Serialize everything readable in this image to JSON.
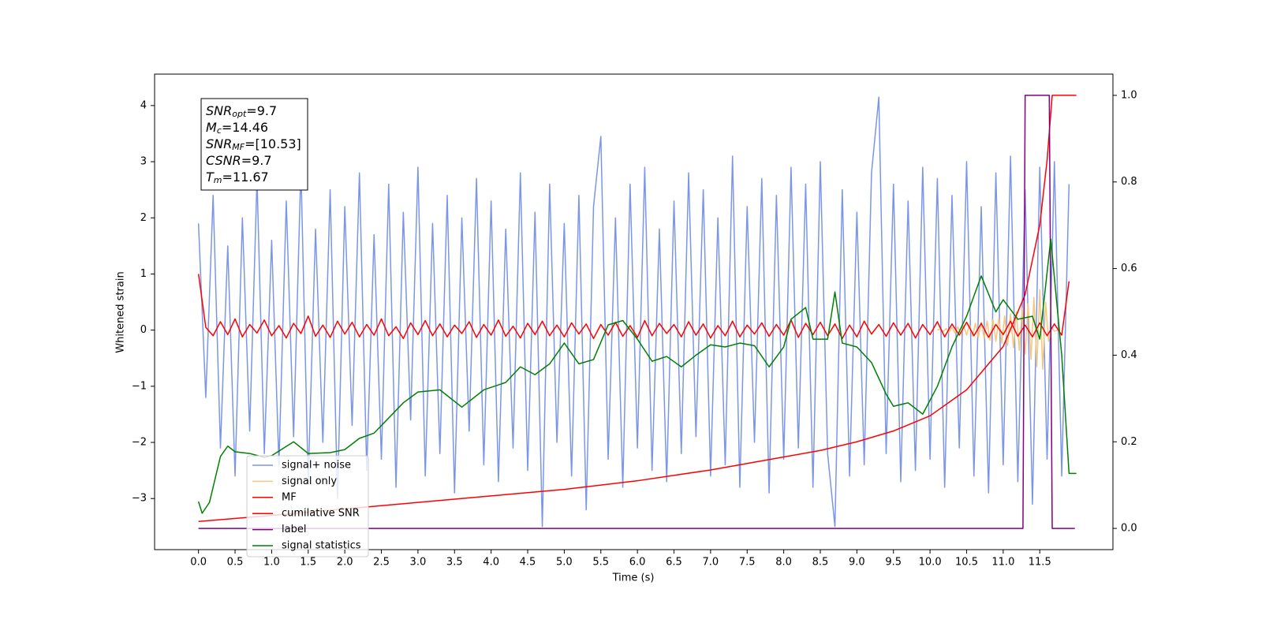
{
  "chart_data": {
    "type": "line",
    "xlabel": "Time (s)",
    "ylabel": "Whitened strain",
    "xlim": [
      -0.6,
      12.5
    ],
    "ylim": [
      -3.91,
      4.56
    ],
    "y2lim": [
      -0.049,
      1.049
    ],
    "xticks": [
      {
        "value": 0,
        "label": "0.0"
      },
      {
        "value": 0.5,
        "label": "0.5"
      },
      {
        "value": 1,
        "label": "1.0"
      },
      {
        "value": 1.5,
        "label": "1.5"
      },
      {
        "value": 2,
        "label": "2.0"
      },
      {
        "value": 2.5,
        "label": "2.5"
      },
      {
        "value": 3,
        "label": "3.0"
      },
      {
        "value": 3.5,
        "label": "3.5"
      },
      {
        "value": 4,
        "label": "4.0"
      },
      {
        "value": 4.5,
        "label": "4.5"
      },
      {
        "value": 5,
        "label": "5.0"
      },
      {
        "value": 5.5,
        "label": "5.5"
      },
      {
        "value": 6,
        "label": "6.0"
      },
      {
        "value": 6.5,
        "label": "6.5"
      },
      {
        "value": 7,
        "label": "7.0"
      },
      {
        "value": 7.5,
        "label": "7.5"
      },
      {
        "value": 8,
        "label": "8.0"
      },
      {
        "value": 8.5,
        "label": "8.5"
      },
      {
        "value": 9,
        "label": "9.0"
      },
      {
        "value": 9.5,
        "label": "9.5"
      },
      {
        "value": 10,
        "label": "10.0"
      },
      {
        "value": 10.5,
        "label": "10.5"
      },
      {
        "value": 11,
        "label": "11.0"
      },
      {
        "value": 11.5,
        "label": "11.5"
      }
    ],
    "yticks": [
      {
        "value": -3,
        "label": "−3"
      },
      {
        "value": -2,
        "label": "−2"
      },
      {
        "value": -1,
        "label": "−1"
      },
      0,
      1,
      2,
      3,
      4
    ],
    "y2ticks": [
      {
        "value": 0,
        "label": "0.0"
      },
      {
        "value": 0.2,
        "label": "0.2"
      },
      {
        "value": 0.4,
        "label": "0.4"
      },
      {
        "value": 0.6,
        "label": "0.6"
      },
      {
        "value": 0.8,
        "label": "0.8"
      },
      {
        "value": 1,
        "label": "1.0"
      }
    ],
    "legend": "lower left",
    "annotation": [
      {
        "text": "SNR",
        "sub": "opt",
        "rest": "=9.7"
      },
      {
        "text": "M",
        "sub": "c",
        "rest": "=14.46"
      },
      {
        "text": "SNR",
        "sub": "MF",
        "rest": "=[10.53]"
      },
      {
        "text": "CSNR",
        "rest": "=9.7"
      },
      {
        "text": "T",
        "sub": "m",
        "rest": "=11.67"
      }
    ],
    "series": [
      {
        "name": "signal+ noise",
        "color": "#7b96e8",
        "x": [
          0,
          0.1,
          0.2,
          0.3,
          0.4,
          0.5,
          0.6,
          0.7,
          0.8,
          0.9,
          1,
          1.1,
          1.2,
          1.3,
          1.4,
          1.5,
          1.6,
          1.7,
          1.8,
          1.9,
          2,
          2.1,
          2.2,
          2.3,
          2.4,
          2.5,
          2.6,
          2.7,
          2.8,
          2.9,
          3,
          3.1,
          3.2,
          3.3,
          3.4,
          3.5,
          3.6,
          3.7,
          3.8,
          3.9,
          4,
          4.1,
          4.2,
          4.3,
          4.4,
          4.5,
          4.6,
          4.7,
          4.8,
          4.9,
          5,
          5.1,
          5.2,
          5.3,
          5.4,
          5.5,
          5.6,
          5.7,
          5.8,
          5.9,
          6,
          6.1,
          6.2,
          6.3,
          6.4,
          6.5,
          6.6,
          6.7,
          6.8,
          6.9,
          7,
          7.1,
          7.2,
          7.3,
          7.4,
          7.5,
          7.6,
          7.7,
          7.8,
          7.9,
          8,
          8.1,
          8.2,
          8.3,
          8.4,
          8.5,
          8.6,
          8.7,
          8.8,
          8.9,
          9,
          9.1,
          9.2,
          9.3,
          9.4,
          9.5,
          9.6,
          9.7,
          9.8,
          9.9,
          10,
          10.1,
          10.2,
          10.3,
          10.4,
          10.5,
          10.6,
          10.7,
          10.8,
          10.9,
          11,
          11.1,
          11.2,
          11.3,
          11.4,
          11.5,
          11.6,
          11.7,
          11.8,
          11.9
        ],
        "values": [
          1.9,
          -1.2,
          2.4,
          -2.1,
          1.5,
          -2.6,
          2.0,
          -1.8,
          2.7,
          -2.2,
          1.6,
          -2.4,
          2.3,
          -1.9,
          2.9,
          -2.7,
          1.8,
          -2.0,
          2.5,
          -3.0,
          2.2,
          -1.7,
          2.8,
          -2.5,
          1.7,
          -2.3,
          2.6,
          -2.8,
          2.1,
          -1.6,
          2.9,
          -2.6,
          1.9,
          -2.2,
          2.4,
          -2.9,
          2.0,
          -1.8,
          2.7,
          -2.4,
          2.3,
          -2.7,
          1.8,
          -2.1,
          2.8,
          -2.5,
          2.1,
          -3.5,
          2.6,
          -2.0,
          1.9,
          -2.6,
          2.4,
          -3.2,
          2.2,
          3.45,
          -2.3,
          2.0,
          -2.8,
          2.6,
          -2.1,
          2.9,
          -2.5,
          1.8,
          -2.7,
          2.3,
          -2.2,
          2.8,
          -1.9,
          2.5,
          -2.6,
          2.0,
          -2.4,
          3.1,
          -2.8,
          2.2,
          -2.0,
          2.7,
          -2.9,
          2.4,
          -2.3,
          2.9,
          -2.1,
          2.6,
          -2.8,
          3.0,
          -2.2,
          -3.5,
          2.5,
          -2.6,
          2.1,
          -2.4,
          2.8,
          4.15,
          -2.2,
          2.6,
          -2.7,
          2.3,
          -2.5,
          2.9,
          -2.3,
          2.7,
          -2.8,
          2.4,
          -2.1,
          3.0,
          -2.6,
          2.2,
          -2.9,
          2.8,
          -2.4,
          3.1,
          -2.7,
          2.5,
          -3.1,
          2.9,
          -2.3,
          3.0,
          -2.6,
          2.6
        ]
      },
      {
        "name": "signal only",
        "color": "#f5c77e",
        "x": [
          10.1,
          10.14,
          10.18,
          10.22,
          10.26,
          10.3,
          10.34,
          10.38,
          10.42,
          10.46,
          10.5,
          10.54,
          10.58,
          10.62,
          10.66,
          10.7,
          10.74,
          10.78,
          10.82,
          10.86,
          10.9,
          10.94,
          10.98,
          11.02,
          11.06,
          11.1,
          11.14,
          11.18,
          11.22,
          11.26,
          11.3,
          11.34,
          11.38,
          11.42,
          11.46,
          11.5,
          11.54,
          11.58,
          11.62,
          11.66,
          11.7,
          11.74,
          11.78
        ],
        "values": [
          0,
          0.02,
          -0.03,
          0.03,
          -0.04,
          0.05,
          -0.05,
          0.06,
          -0.07,
          0.08,
          -0.09,
          0.1,
          -0.11,
          0.12,
          -0.13,
          0.14,
          -0.15,
          0.16,
          -0.18,
          0.19,
          -0.2,
          0.22,
          -0.23,
          0.25,
          -0.27,
          0.29,
          -0.31,
          0.33,
          -0.36,
          0.39,
          -0.43,
          0.47,
          -0.52,
          0.58,
          -0.65,
          0.72,
          -0.7,
          0.5,
          -0.2,
          0.05,
          -0.02,
          0,
          0
        ]
      },
      {
        "name": "MF",
        "color": "#ff0000",
        "x": [
          0,
          0.1,
          0.2,
          0.3,
          0.4,
          0.5,
          0.6,
          0.7,
          0.8,
          0.9,
          1,
          1.1,
          1.2,
          1.3,
          1.4,
          1.5,
          1.6,
          1.7,
          1.8,
          1.9,
          2,
          2.1,
          2.2,
          2.3,
          2.4,
          2.5,
          2.6,
          2.7,
          2.8,
          2.9,
          3,
          3.1,
          3.2,
          3.3,
          3.4,
          3.5,
          3.6,
          3.7,
          3.8,
          3.9,
          4,
          4.1,
          4.2,
          4.3,
          4.4,
          4.5,
          4.6,
          4.7,
          4.8,
          4.9,
          5,
          5.1,
          5.2,
          5.3,
          5.4,
          5.5,
          5.6,
          5.7,
          5.8,
          5.9,
          6,
          6.1,
          6.2,
          6.3,
          6.4,
          6.5,
          6.6,
          6.7,
          6.8,
          6.9,
          7,
          7.1,
          7.2,
          7.3,
          7.4,
          7.5,
          7.6,
          7.7,
          7.8,
          7.9,
          8,
          8.1,
          8.2,
          8.3,
          8.4,
          8.5,
          8.6,
          8.7,
          8.8,
          8.9,
          9,
          9.1,
          9.2,
          9.3,
          9.4,
          9.5,
          9.6,
          9.7,
          9.8,
          9.9,
          10,
          10.1,
          10.2,
          10.3,
          10.4,
          10.5,
          10.6,
          10.7,
          10.8,
          10.9,
          11,
          11.1,
          11.2,
          11.3,
          11.4,
          11.5,
          11.6,
          11.7,
          11.8,
          11.9
        ],
        "values": [
          1.0,
          0.05,
          -0.1,
          0.15,
          -0.08,
          0.2,
          -0.12,
          0.1,
          -0.05,
          0.18,
          -0.1,
          0.08,
          -0.14,
          0.12,
          -0.06,
          0.25,
          -0.11,
          0.09,
          -0.13,
          0.16,
          -0.07,
          0.14,
          -0.12,
          0.1,
          -0.09,
          0.2,
          -0.1,
          0.06,
          -0.15,
          0.13,
          -0.08,
          0.17,
          -0.1,
          0.11,
          -0.12,
          0.09,
          -0.06,
          0.15,
          -0.13,
          0.1,
          -0.09,
          0.18,
          -0.11,
          0.07,
          -0.14,
          0.12,
          -0.08,
          0.16,
          -0.1,
          0.09,
          -0.12,
          0.13,
          -0.07,
          0.11,
          -0.15,
          0.1,
          -0.09,
          0.14,
          -0.11,
          0.08,
          -0.13,
          0.17,
          -0.1,
          0.12,
          -0.06,
          0.1,
          -0.12,
          0.15,
          -0.09,
          0.11,
          -0.14,
          0.08,
          -0.1,
          0.16,
          -0.12,
          0.09,
          -0.07,
          0.13,
          -0.11,
          0.1,
          -0.09,
          0.18,
          -0.13,
          0.12,
          -0.08,
          0.14,
          -0.1,
          0.11,
          -0.15,
          0.09,
          -0.12,
          0.16,
          -0.07,
          0.1,
          -0.11,
          0.13,
          -0.09,
          0.12,
          -0.14,
          0.1,
          -0.08,
          0.15,
          -0.12,
          0.11,
          -0.09,
          0.14,
          -0.1,
          0.12,
          -0.13,
          0.1,
          -0.08,
          0.16,
          -0.11,
          0.09,
          -0.12,
          0.13,
          -0.1,
          0.11,
          -0.09,
          0.87
        ]
      },
      {
        "name": "cumilative SNR",
        "color": "#ff0000",
        "axis": "y2",
        "x": [
          0,
          1,
          2,
          3,
          4,
          5,
          6,
          7,
          8,
          8.5,
          9,
          9.5,
          10,
          10.5,
          11,
          11.3,
          11.5,
          11.6,
          11.67,
          12
        ],
        "values": [
          0.016,
          0.03,
          0.045,
          0.06,
          0.075,
          0.09,
          0.11,
          0.135,
          0.165,
          0.18,
          0.2,
          0.225,
          0.26,
          0.32,
          0.42,
          0.54,
          0.7,
          0.85,
          1.0,
          1.0
        ]
      },
      {
        "name": "label",
        "color": "#800080",
        "axis": "y2",
        "x": [
          0,
          11.27,
          11.3,
          11.63,
          11.67,
          11.98
        ],
        "values": [
          0,
          0,
          1,
          1,
          0,
          0
        ]
      },
      {
        "name": "signal statistics",
        "color": "#008000",
        "axis": "y2",
        "x": [
          0,
          0.05,
          0.15,
          0.3,
          0.4,
          0.5,
          0.7,
          0.9,
          1,
          1.3,
          1.5,
          1.8,
          2,
          2.2,
          2.4,
          2.6,
          2.8,
          3,
          3.3,
          3.6,
          3.9,
          4.2,
          4.4,
          4.6,
          4.8,
          5,
          5.2,
          5.4,
          5.6,
          5.8,
          6,
          6.2,
          6.4,
          6.6,
          6.8,
          7,
          7.2,
          7.4,
          7.6,
          7.8,
          8,
          8.1,
          8.3,
          8.4,
          8.6,
          8.7,
          8.8,
          9,
          9.2,
          9.4,
          9.5,
          9.7,
          9.9,
          10.1,
          10.3,
          10.5,
          10.7,
          10.9,
          11,
          11.2,
          11.4,
          11.5,
          11.65,
          11.8,
          11.9,
          12
        ],
        "values": [
          0.062,
          0.035,
          0.06,
          0.166,
          0.19,
          0.177,
          0.173,
          0.164,
          0.168,
          0.2,
          0.173,
          0.175,
          0.182,
          0.208,
          0.22,
          0.255,
          0.29,
          0.315,
          0.32,
          0.28,
          0.32,
          0.337,
          0.373,
          0.355,
          0.38,
          0.428,
          0.38,
          0.39,
          0.47,
          0.48,
          0.437,
          0.386,
          0.397,
          0.373,
          0.4,
          0.424,
          0.419,
          0.428,
          0.422,
          0.373,
          0.419,
          0.483,
          0.51,
          0.437,
          0.437,
          0.546,
          0.428,
          0.419,
          0.383,
          0.31,
          0.282,
          0.29,
          0.264,
          0.328,
          0.419,
          0.49,
          0.583,
          0.5,
          0.528,
          0.483,
          0.49,
          0.437,
          0.668,
          0.4,
          0.127,
          0.127
        ]
      }
    ]
  }
}
